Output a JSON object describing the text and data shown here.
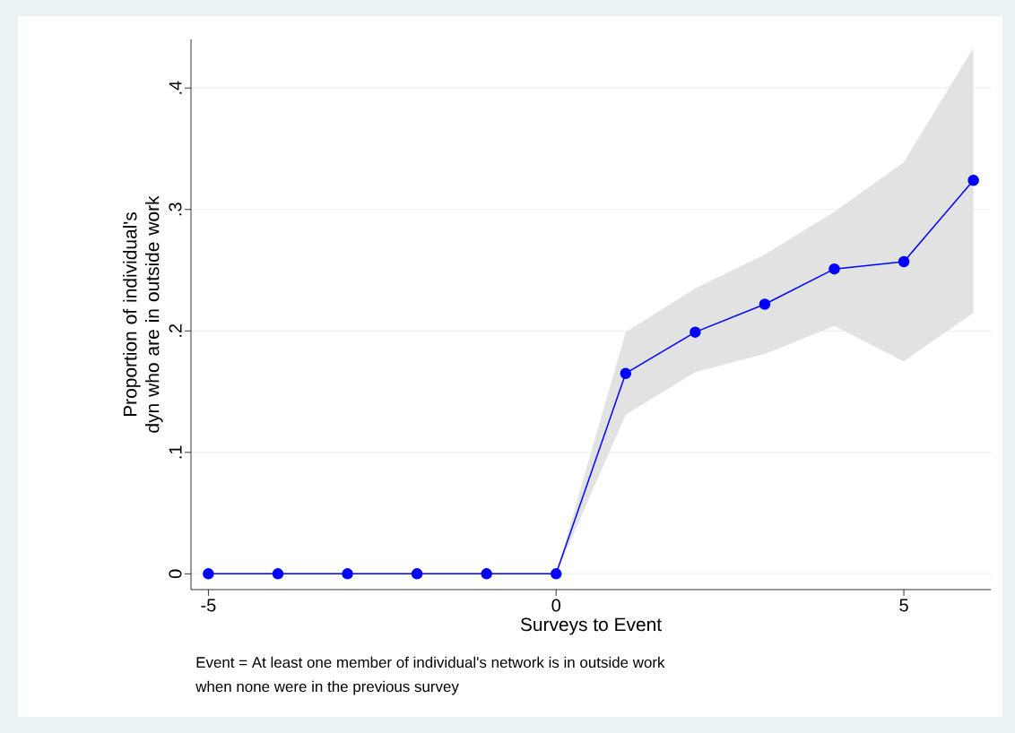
{
  "chart_data": {
    "type": "line",
    "xlabel": "Surveys to Event",
    "ylabel": "Proportion of individual's dyn who are in outside work",
    "annotations": [
      "Event = At least one member of individual's network is in outside work",
      "when none were in the previous survey"
    ],
    "x": [
      -5,
      -4,
      -3,
      -2,
      -1,
      0,
      1,
      2,
      3,
      4,
      5,
      6
    ],
    "series": [
      {
        "color": "#0000ff",
        "values": [
          0,
          0,
          0,
          0,
          0,
          0,
          0.165,
          0.199,
          0.222,
          0.251,
          0.257,
          0.324
        ],
        "lower": [
          0,
          0,
          0,
          0,
          0,
          0,
          0.131,
          0.166,
          0.181,
          0.204,
          0.175,
          0.215
        ],
        "upper": [
          0,
          0,
          0,
          0,
          0,
          0,
          0.199,
          0.235,
          0.263,
          0.298,
          0.339,
          0.433
        ]
      }
    ],
    "xlim": [
      -5.25,
      6.25
    ],
    "ylim": [
      -0.013,
      0.44
    ],
    "xticks": [
      -5,
      0,
      5
    ],
    "yticks": [
      0,
      {
        "value": 0.1,
        "label": ".1"
      },
      {
        "value": 0.2,
        "label": ".2"
      },
      {
        "value": 0.3,
        "label": ".3"
      },
      {
        "value": 0.4,
        "label": ".4"
      }
    ],
    "grid": "y",
    "marker": "circle",
    "line_style": "solid"
  }
}
